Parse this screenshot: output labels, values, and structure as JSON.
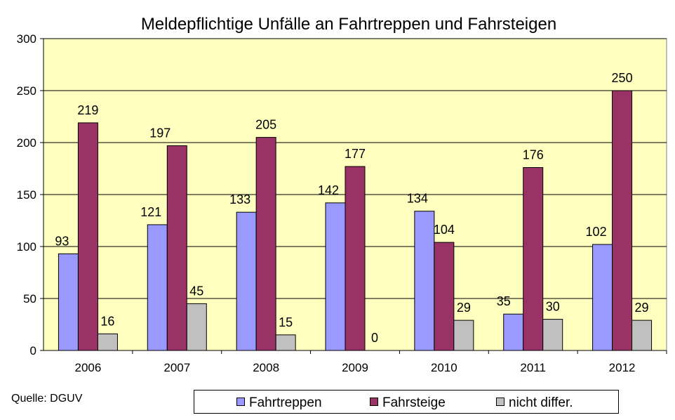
{
  "chart_data": {
    "type": "bar",
    "title": "Meldepflichtige Unfälle an Fahrtreppen und Fahrsteigen",
    "categories": [
      "2006",
      "2007",
      "2008",
      "2009",
      "2010",
      "2011",
      "2012"
    ],
    "series": [
      {
        "name": "Fahrtreppen",
        "values": [
          93,
          121,
          133,
          142,
          134,
          35,
          102
        ],
        "color": "#9999ff"
      },
      {
        "name": "Fahrsteige",
        "values": [
          219,
          197,
          205,
          177,
          104,
          176,
          250
        ],
        "color": "#993366"
      },
      {
        "name": "nicht differ.",
        "values": [
          16,
          45,
          15,
          0,
          29,
          30,
          29
        ],
        "color": "#c0c0c0"
      }
    ],
    "ylim": [
      0,
      300
    ],
    "yticks": [
      0,
      50,
      100,
      150,
      200,
      250,
      300
    ],
    "grid": true,
    "plot_background": "#ffffc0",
    "legend_position": "bottom",
    "source": "Quelle: DGUV"
  }
}
